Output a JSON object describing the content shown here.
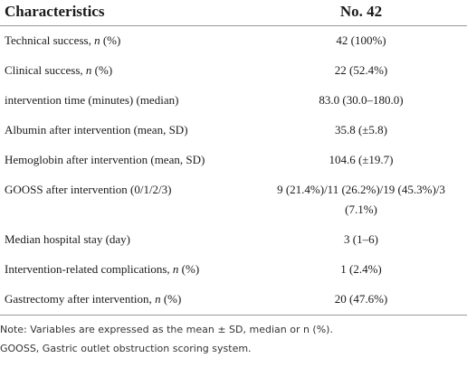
{
  "table": {
    "header": [
      "Characteristics",
      "No. 42"
    ],
    "rows": [
      [
        [
          {
            "text": "Technical success, "
          },
          {
            "text": "n",
            "italic": true
          },
          {
            "text": " (%)"
          }
        ],
        [
          {
            "text": "42 (100%)"
          }
        ]
      ],
      [
        [
          {
            "text": "Clinical success, "
          },
          {
            "text": "n",
            "italic": true
          },
          {
            "text": " (%)"
          }
        ],
        [
          {
            "text": "22 (52.4%)"
          }
        ]
      ],
      [
        [
          {
            "text": "intervention time (minutes) (median)"
          }
        ],
        [
          {
            "text": "83.0 (30.0–180.0)"
          }
        ]
      ],
      [
        [
          {
            "text": "Albumin after intervention (mean, SD)"
          }
        ],
        [
          {
            "text": "35.8 (±5.8)"
          }
        ]
      ],
      [
        [
          {
            "text": "Hemoglobin after intervention (mean, SD)"
          }
        ],
        [
          {
            "text": "104.6 (±19.7)"
          }
        ]
      ],
      [
        [
          {
            "text": "GOOSS after intervention (0/1/2/3)"
          }
        ],
        [
          {
            "text": "9 (21.4%)/11 (26.2%)/19 (45.3%)/3 (7.1%)"
          }
        ]
      ],
      [
        [
          {
            "text": "Median hospital stay (day)"
          }
        ],
        [
          {
            "text": "3 (1–6)"
          }
        ]
      ],
      [
        [
          {
            "text": "Intervention-related complications, "
          },
          {
            "text": "n",
            "italic": true
          },
          {
            "text": " (%)"
          }
        ],
        [
          {
            "text": "1 (2.4%)"
          }
        ]
      ],
      [
        [
          {
            "text": "Gastrectomy after intervention, "
          },
          {
            "text": "n",
            "italic": true
          },
          {
            "text": " (%)"
          }
        ],
        [
          {
            "text": "20 (47.6%)"
          }
        ]
      ]
    ],
    "notes": [
      "Note: Variables are expressed as the mean ± SD, median or n (%).",
      "GOOSS, Gastric outlet obstruction scoring system."
    ]
  }
}
